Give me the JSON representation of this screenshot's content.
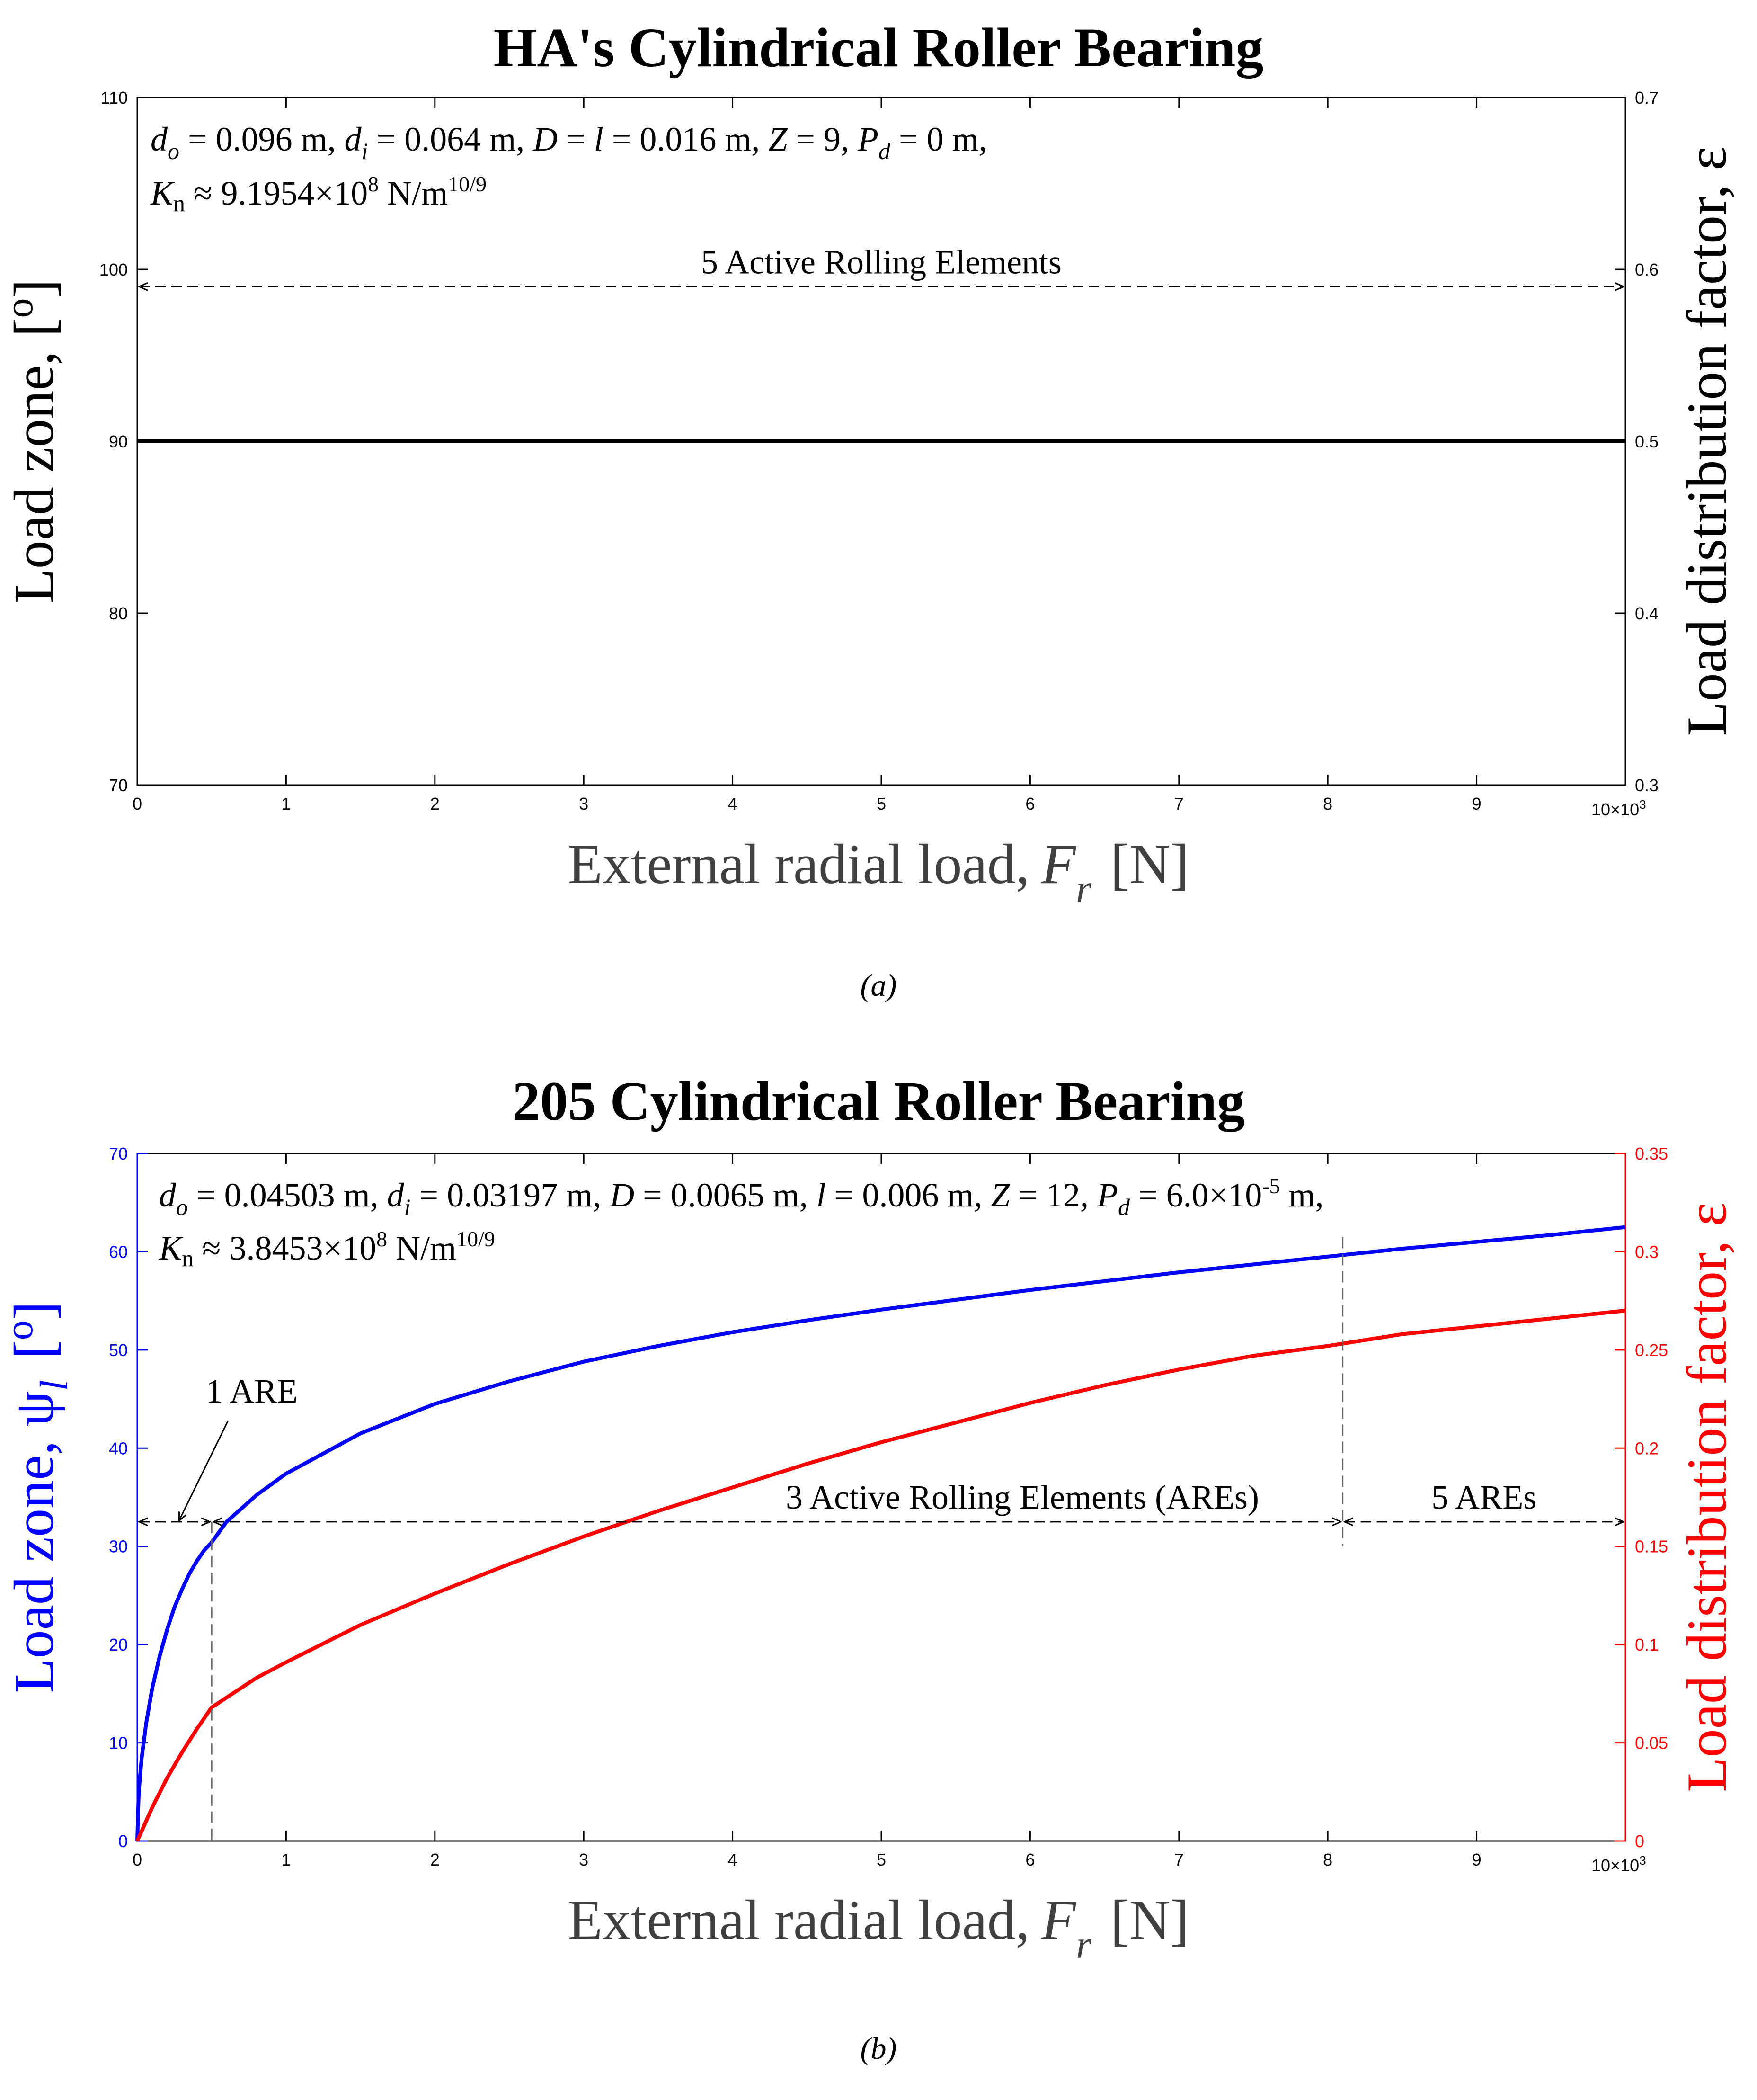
{
  "figure_captions": [
    "(a)",
    "(b)"
  ],
  "chart_data": [
    {
      "type": "line",
      "title": "HA's Cylindrical Roller Bearing",
      "xlabel_text": "External radial load,",
      "xlabel_symbol": "F",
      "xlabel_subscript": "r",
      "xlabel_unit": "[N]",
      "ylabel_left": "Load zone, [",
      "ylabel_left_super": "o",
      "ylabel_left_close": "]",
      "ylabel_right": "Load distribution factor, ε",
      "xlim": [
        0,
        10000
      ],
      "ylim_left": [
        70,
        110
      ],
      "ylim_right": [
        0.3,
        0.7
      ],
      "x_ticks": [
        0,
        1000,
        2000,
        3000,
        4000,
        5000,
        6000,
        7000,
        8000,
        9000
      ],
      "x_tick_labels": [
        "0",
        "1",
        "2",
        "3",
        "4",
        "5",
        "6",
        "7",
        "8",
        "9"
      ],
      "x_multiplier": "10×10",
      "x_multiplier_exp": "3",
      "y_left_ticks": [
        70,
        80,
        90,
        100,
        110
      ],
      "y_left_tick_labels": [
        "70",
        "80",
        "90",
        "100",
        "110"
      ],
      "y_right_ticks": [
        0.3,
        0.4,
        0.5,
        0.6,
        0.7
      ],
      "y_right_tick_labels": [
        "0.3",
        "0.4",
        "0.5",
        "0.6",
        "0.7"
      ],
      "axis_colors": {
        "left": "#000000",
        "right": "#000000"
      },
      "params": {
        "line1": "d_o = 0.096 m, d_i = 0.064 m, D = l = 0.016 m, Z = 9, P_d = 0 m,",
        "line2": "K_n ≈ 9.1954×10^8 N/m^10/9"
      },
      "series": [
        {
          "name": "Load zone",
          "axis": "left",
          "color": "#000000",
          "x": [
            0,
            10000
          ],
          "y": [
            90,
            90
          ]
        }
      ],
      "annotations": [
        {
          "text": "5 Active Rolling Elements",
          "x_from": 0,
          "x_to": 10000,
          "y": 99
        }
      ]
    },
    {
      "type": "line",
      "title": "205 Cylindrical Roller Bearing",
      "xlabel_text": "External radial load,",
      "xlabel_symbol": "F",
      "xlabel_subscript": "r",
      "xlabel_unit": "[N]",
      "ylabel_left": "Load zone, ψ",
      "ylabel_left_sub": "l",
      "ylabel_left_super": "o",
      "ylabel_right": "Load distribution factor, ε",
      "xlim": [
        0,
        10000
      ],
      "ylim_left": [
        0,
        70
      ],
      "ylim_right": [
        0,
        0.35
      ],
      "x_ticks": [
        0,
        1000,
        2000,
        3000,
        4000,
        5000,
        6000,
        7000,
        8000,
        9000
      ],
      "x_tick_labels": [
        "0",
        "1",
        "2",
        "3",
        "4",
        "5",
        "6",
        "7",
        "8",
        "9"
      ],
      "x_multiplier": "10×10",
      "x_multiplier_exp": "3",
      "y_left_ticks": [
        0,
        10,
        20,
        30,
        40,
        50,
        60,
        70
      ],
      "y_left_tick_labels": [
        "0",
        "10",
        "20",
        "30",
        "40",
        "50",
        "60",
        "70"
      ],
      "y_right_ticks": [
        0,
        0.05,
        0.1,
        0.15,
        0.2,
        0.25,
        0.3,
        0.35
      ],
      "y_right_tick_labels": [
        "0",
        "0.05",
        "0.1",
        "0.15",
        "0.2",
        "0.25",
        "0.3",
        "0.35"
      ],
      "axis_colors": {
        "left": "#0000ff",
        "right": "#ff0000"
      },
      "params": {
        "line1": "d_o = 0.04503 m, d_i = 0.03197 m, D = 0.0065 m, l = 0.006 m, Z = 12, P_d = 6.0×10^-5 m,",
        "line2": "K_n ≈ 3.8453×10^8 N/m^10/9"
      },
      "series": [
        {
          "name": "Load zone ψl",
          "axis": "left",
          "color": "#0000ff",
          "x": [
            0,
            10,
            30,
            60,
            100,
            150,
            200,
            250,
            300,
            350,
            400,
            450,
            500,
            600,
            800,
            1000,
            1500,
            2000,
            2500,
            3000,
            3500,
            4000,
            4500,
            5000,
            5500,
            6000,
            6500,
            7000,
            7500,
            8000,
            8500,
            9000,
            9500,
            10000
          ],
          "y": [
            0,
            5.0,
            8.5,
            12.0,
            15.5,
            18.8,
            21.5,
            23.8,
            25.6,
            27.2,
            28.5,
            29.6,
            30.4,
            32.5,
            35.2,
            37.4,
            41.5,
            44.5,
            46.8,
            48.8,
            50.4,
            51.8,
            53.0,
            54.1,
            55.1,
            56.1,
            57.0,
            57.9,
            58.7,
            59.5,
            60.3,
            61.0,
            61.7,
            62.5
          ]
        },
        {
          "name": "Load distribution factor ε",
          "axis": "right",
          "color": "#ff0000",
          "x": [
            0,
            100,
            200,
            300,
            400,
            500,
            600,
            800,
            1000,
            1500,
            2000,
            2500,
            3000,
            3500,
            4000,
            4500,
            5000,
            5500,
            6000,
            6500,
            7000,
            7500,
            8000,
            8500,
            9000,
            9500,
            10000
          ],
          "y": [
            0,
            0.017,
            0.032,
            0.045,
            0.057,
            0.068,
            0.073,
            0.083,
            0.091,
            0.11,
            0.126,
            0.141,
            0.155,
            0.168,
            0.18,
            0.192,
            0.203,
            0.213,
            0.223,
            0.232,
            0.24,
            0.247,
            0.252,
            0.258,
            0.262,
            0.266,
            0.27
          ]
        }
      ],
      "annotations": [
        {
          "text": "1 ARE",
          "x_from": 0,
          "x_to": 500,
          "y": 32.5
        },
        {
          "text": "3 Active Rolling Elements (AREs)",
          "x_from": 500,
          "x_to": 8100,
          "y": 32.5
        },
        {
          "text": "5 AREs",
          "x_from": 8100,
          "x_to": 10000,
          "y": 32.5
        }
      ],
      "vlines": [
        {
          "x": 500,
          "y_from": 0,
          "y_to": 32.5
        },
        {
          "x": 8100,
          "y_from": 30,
          "y_to": 61.5
        }
      ]
    }
  ]
}
